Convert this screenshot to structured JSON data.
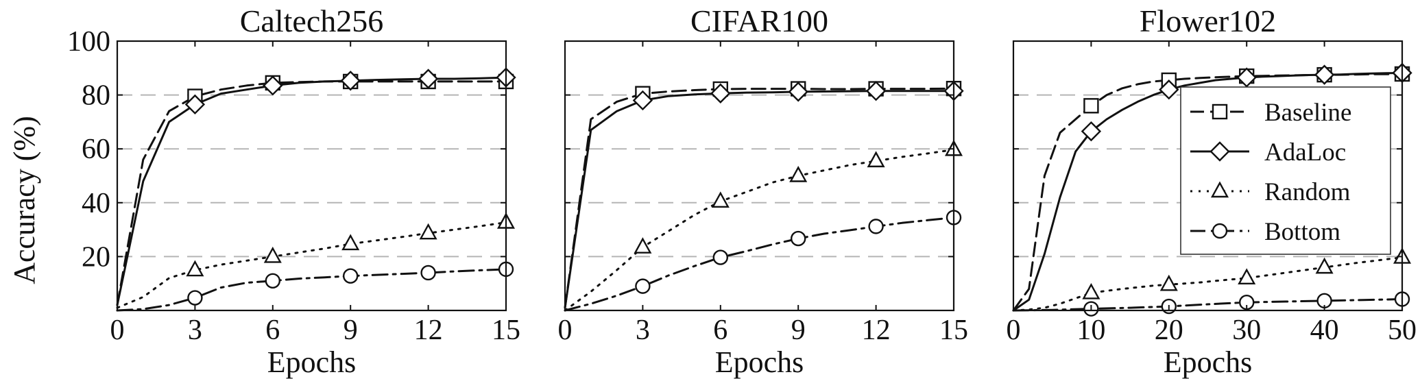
{
  "figure": {
    "ylabel": "Accuracy (%)"
  },
  "legend": {
    "entries": [
      {
        "series": "Baseline",
        "label": "Baseline"
      },
      {
        "series": "AdaLoc",
        "label": "AdaLoc"
      },
      {
        "series": "Random",
        "label": "Random"
      },
      {
        "series": "Bottom",
        "label": "Bottom"
      }
    ]
  },
  "series_styles": {
    "Baseline": {
      "line": "dashed",
      "marker": "square",
      "color": "#111111"
    },
    "AdaLoc": {
      "line": "solid",
      "marker": "diamond",
      "color": "#111111"
    },
    "Random": {
      "line": "dotted",
      "marker": "triangle",
      "color": "#111111"
    },
    "Bottom": {
      "line": "dashdot",
      "marker": "circle",
      "color": "#111111"
    }
  },
  "chart_data": [
    {
      "type": "line",
      "title": "Caltech256",
      "xlabel": "Epochs",
      "ylabel": "Accuracy (%)",
      "xlim": [
        0,
        15
      ],
      "ylim": [
        0,
        100
      ],
      "xticks": [
        0,
        3,
        6,
        9,
        12,
        15
      ],
      "yticks": [
        20,
        40,
        60,
        80,
        100
      ],
      "grid": true,
      "legend": "none",
      "series": [
        {
          "name": "Baseline",
          "x": [
            0,
            1,
            2,
            3,
            4,
            5,
            6,
            7,
            8,
            9,
            10,
            11,
            12,
            13,
            14,
            15
          ],
          "y": [
            2,
            56,
            74,
            79.5,
            82,
            83.5,
            84.5,
            84.8,
            85,
            85,
            85,
            85,
            85,
            85,
            85,
            85
          ],
          "markers": [
            3,
            6,
            9,
            12,
            15
          ]
        },
        {
          "name": "AdaLoc",
          "x": [
            0,
            1,
            2,
            3,
            4,
            5,
            6,
            7,
            8,
            9,
            10,
            11,
            12,
            13,
            14,
            15
          ],
          "y": [
            2,
            48,
            70,
            76.5,
            80.5,
            82,
            83.5,
            84.5,
            85,
            85.3,
            85.6,
            85.8,
            86,
            86,
            86.2,
            86.5
          ],
          "markers": [
            3,
            6,
            9,
            12,
            15
          ]
        },
        {
          "name": "Random",
          "x": [
            0,
            1,
            2,
            3,
            4,
            5,
            6,
            7,
            8,
            9,
            10,
            11,
            12,
            13,
            14,
            15
          ],
          "y": [
            1,
            5,
            12,
            15,
            17,
            18.5,
            20,
            21.5,
            23,
            24.7,
            26,
            27.3,
            28.7,
            30,
            31.3,
            32.7
          ],
          "markers": [
            3,
            6,
            9,
            12,
            15
          ]
        },
        {
          "name": "Bottom",
          "x": [
            0,
            1,
            2,
            3,
            4,
            5,
            6,
            7,
            8,
            9,
            10,
            11,
            12,
            13,
            14,
            15
          ],
          "y": [
            0,
            0.5,
            2,
            4.7,
            8.5,
            10.3,
            11,
            11.8,
            12.3,
            12.8,
            13.2,
            13.6,
            14,
            14.5,
            14.9,
            15.3
          ],
          "markers": [
            3,
            6,
            9,
            12,
            15
          ]
        }
      ]
    },
    {
      "type": "line",
      "title": "CIFAR100",
      "xlabel": "Epochs",
      "ylabel": "",
      "xlim": [
        0,
        15
      ],
      "ylim": [
        0,
        100
      ],
      "xticks": [
        0,
        3,
        6,
        9,
        12,
        15
      ],
      "yticks": [
        20,
        40,
        60,
        80,
        100
      ],
      "grid": true,
      "legend": "none",
      "series": [
        {
          "name": "Baseline",
          "x": [
            0,
            1,
            2,
            3,
            4,
            5,
            6,
            7,
            8,
            9,
            10,
            11,
            12,
            13,
            14,
            15
          ],
          "y": [
            1,
            71,
            77.5,
            80.5,
            81.3,
            81.8,
            82.2,
            82.3,
            82.3,
            82.3,
            82.2,
            82.2,
            82.3,
            82.3,
            82.3,
            82.4
          ],
          "markers": [
            3,
            6,
            9,
            12,
            15
          ]
        },
        {
          "name": "AdaLoc",
          "x": [
            0,
            1,
            2,
            3,
            4,
            5,
            6,
            7,
            8,
            9,
            10,
            11,
            12,
            13,
            14,
            15
          ],
          "y": [
            1,
            67,
            74,
            78,
            79.6,
            80.2,
            80.6,
            80.9,
            81,
            81.2,
            81.3,
            81.4,
            81.5,
            81.5,
            81.5,
            81.5
          ],
          "markers": [
            3,
            6,
            9,
            12,
            15
          ]
        },
        {
          "name": "Random",
          "x": [
            0,
            1,
            2,
            3,
            4,
            5,
            6,
            7,
            8,
            9,
            10,
            11,
            12,
            13,
            14,
            15
          ],
          "y": [
            0,
            7,
            15,
            23.5,
            29.5,
            35.5,
            40.5,
            44,
            47.5,
            50,
            52,
            54,
            55.5,
            57,
            58.3,
            59.7
          ],
          "markers": [
            3,
            6,
            9,
            12,
            15
          ]
        },
        {
          "name": "Bottom",
          "x": [
            0,
            1,
            2,
            3,
            4,
            5,
            6,
            7,
            8,
            9,
            10,
            11,
            12,
            13,
            14,
            15
          ],
          "y": [
            0,
            2.5,
            5.5,
            9,
            13,
            16.5,
            19.7,
            22,
            24.5,
            26.7,
            28.5,
            29.8,
            31.2,
            32.5,
            33.5,
            34.5
          ],
          "markers": [
            3,
            6,
            9,
            12,
            15
          ]
        }
      ]
    },
    {
      "type": "line",
      "title": "Flower102",
      "xlabel": "Epochs",
      "ylabel": "",
      "xlim": [
        0,
        50
      ],
      "ylim": [
        0,
        100
      ],
      "xticks": [
        0,
        10,
        20,
        30,
        40,
        50
      ],
      "yticks": [
        20,
        40,
        60,
        80,
        100
      ],
      "grid": true,
      "legend": "right",
      "series": [
        {
          "name": "Baseline",
          "x": [
            0,
            2,
            4,
            6,
            8,
            10,
            12,
            14,
            16,
            18,
            20,
            22,
            24,
            26,
            28,
            30,
            32,
            34,
            36,
            38,
            40,
            42,
            44,
            46,
            48,
            50
          ],
          "y": [
            0,
            8,
            50,
            66,
            71,
            76,
            80,
            82.5,
            84,
            85,
            85.5,
            86,
            86.3,
            86.6,
            86.8,
            87,
            87.1,
            87.2,
            87.3,
            87.4,
            87.5,
            87.5,
            87.6,
            87.7,
            87.7,
            87.8
          ],
          "markers": [
            10,
            20,
            30,
            40,
            50
          ]
        },
        {
          "name": "AdaLoc",
          "x": [
            0,
            2,
            4,
            6,
            8,
            10,
            12,
            14,
            16,
            18,
            20,
            22,
            24,
            26,
            28,
            30,
            32,
            34,
            36,
            38,
            40,
            42,
            44,
            46,
            48,
            50
          ],
          "y": [
            0,
            4,
            21,
            42,
            59,
            66.5,
            71,
            74.5,
            77.5,
            80,
            82,
            83.5,
            84.5,
            85.5,
            86,
            86.5,
            86.8,
            87,
            87.2,
            87.4,
            87.5,
            87.6,
            87.8,
            88,
            88.1,
            88.2
          ],
          "markers": [
            10,
            20,
            30,
            40,
            50
          ]
        },
        {
          "name": "Random",
          "x": [
            0,
            2,
            4,
            6,
            8,
            10,
            12,
            14,
            16,
            18,
            20,
            22,
            24,
            26,
            28,
            30,
            32,
            34,
            36,
            38,
            40,
            42,
            44,
            46,
            48,
            50
          ],
          "y": [
            0,
            0.3,
            1,
            2.5,
            4.5,
            6.5,
            7.3,
            8,
            8.6,
            9.2,
            9.6,
            10,
            10.4,
            11,
            11.5,
            12,
            12.8,
            13.6,
            14.4,
            15.2,
            16,
            16.8,
            17.6,
            18.3,
            19,
            19.7
          ],
          "markers": [
            10,
            20,
            30,
            40,
            50
          ]
        },
        {
          "name": "Bottom",
          "x": [
            0,
            5,
            10,
            15,
            20,
            25,
            30,
            35,
            40,
            45,
            50
          ],
          "y": [
            0,
            0.2,
            0.6,
            1,
            1.5,
            2.3,
            3,
            3.3,
            3.6,
            3.9,
            4.2
          ],
          "markers": [
            10,
            20,
            30,
            40,
            50
          ]
        }
      ]
    }
  ]
}
